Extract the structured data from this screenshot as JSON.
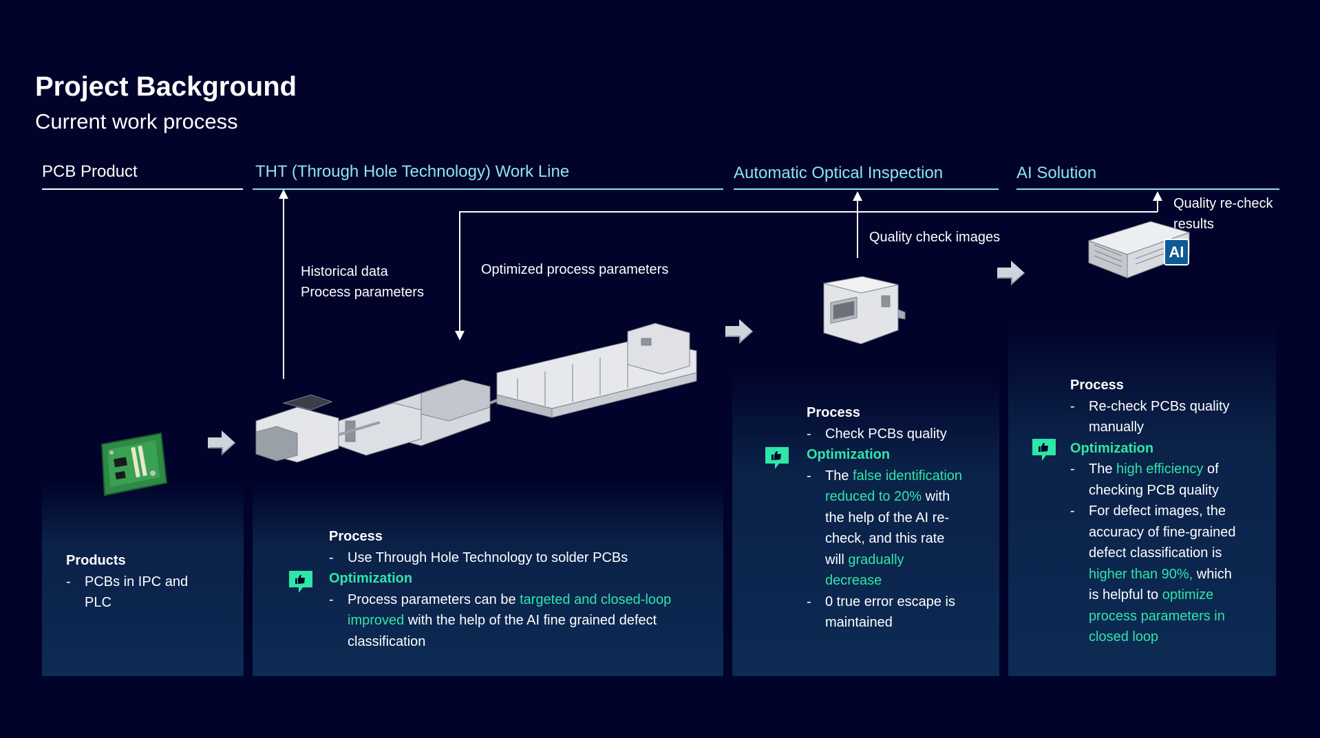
{
  "header": {
    "title": "Project Background",
    "subtitle": "Current work process"
  },
  "columns": [
    {
      "label": "PCB Product"
    },
    {
      "label": "THT (Through Hole Technology) Work Line"
    },
    {
      "label": "Automatic Optical Inspection"
    },
    {
      "label": "AI Solution"
    }
  ],
  "flow_labels": {
    "historical_data": "Historical data",
    "process_parameters": "Process parameters",
    "optimized_params": "Optimized process parameters",
    "quality_images": "Quality check images",
    "recheck_line1": "Quality re-check",
    "recheck_line2": "results"
  },
  "ai_badge": "AI",
  "panels": {
    "pcb": {
      "heading": "Products",
      "bullet1_line1": "PCBs in IPC and",
      "bullet1_line2": "PLC"
    },
    "tht": {
      "process_heading": "Process",
      "process_bullet": "Use Through Hole Technology to solder PCBs",
      "opt_heading": "Optimization",
      "opt_pre": "Process parameters can be ",
      "opt_hl1": "targeted and closed-loop",
      "opt_hl2": "improved",
      "opt_mid": " with the help of the AI fine grained defect",
      "opt_end": "classification"
    },
    "aoi": {
      "process_heading": "Process",
      "process_bullet": "Check PCBs quality",
      "opt_heading": "Optimization",
      "b1_l1_pre": "The ",
      "b1_l1_hl": "false identification",
      "b1_l2_hl": "reduced to 20%",
      "b1_l2_post": " with",
      "b1_l3": "the help of the AI re-",
      "b1_l4": "check, and this rate",
      "b1_l5_pre": "will ",
      "b1_l5_hl": "gradually",
      "b1_l6_hl": "decrease",
      "b2_l1": "0 true error escape is",
      "b2_l2": "maintained"
    },
    "ai": {
      "process_heading": "Process",
      "p_l1": "Re-check PCBs quality",
      "p_l2": "manually",
      "opt_heading": "Optimization",
      "b1_l1_pre": "The ",
      "b1_l1_hl": "high efficiency",
      "b1_l1_post": " of",
      "b1_l2": "checking PCB quality",
      "b2_l1": "For defect images, the",
      "b2_l2": "accuracy of fine-grained",
      "b2_l3": "defect classification is",
      "b2_l4_hl": "higher than 90%,",
      "b2_l4_post": " which",
      "b2_l5_pre": "is helpful to ",
      "b2_l5_hl": "optimize",
      "b2_l6_hl": "process parameters in",
      "b2_l7_hl": "closed loop"
    }
  },
  "colors": {
    "background": "#01032a",
    "accent_cyan": "#8fe3f2",
    "highlight_green": "#2ee6a8"
  }
}
